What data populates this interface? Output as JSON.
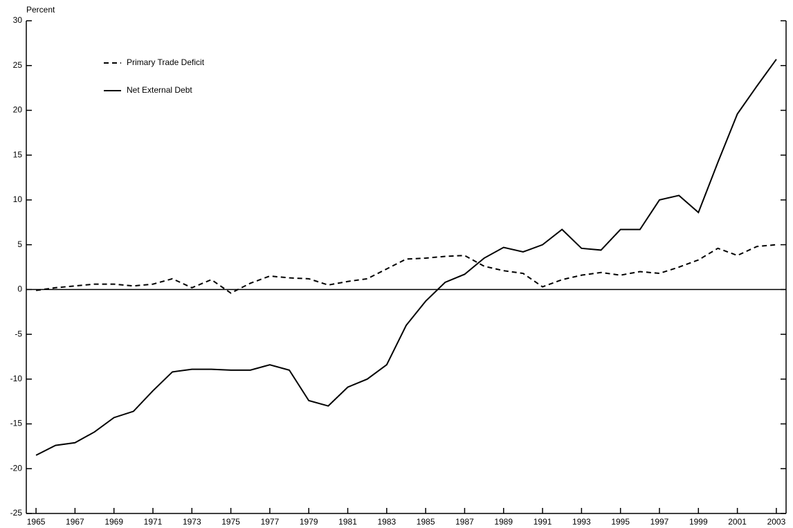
{
  "chart_data": {
    "type": "line",
    "y_label": "Percent",
    "x": [
      1965,
      1966,
      1967,
      1968,
      1969,
      1970,
      1971,
      1972,
      1973,
      1974,
      1975,
      1976,
      1977,
      1978,
      1979,
      1980,
      1981,
      1982,
      1983,
      1984,
      1985,
      1986,
      1987,
      1988,
      1989,
      1990,
      1991,
      1992,
      1993,
      1994,
      1995,
      1996,
      1997,
      1998,
      1999,
      2000,
      2001,
      2002,
      2003
    ],
    "series": [
      {
        "name": "Primary Trade Deficit",
        "color": "#000000",
        "style": "dashed",
        "values": [
          -0.1,
          0.2,
          0.4,
          0.6,
          0.6,
          0.4,
          0.6,
          1.2,
          0.2,
          1.1,
          -0.4,
          0.7,
          1.5,
          1.3,
          1.2,
          0.5,
          0.9,
          1.2,
          2.3,
          3.4,
          3.5,
          3.7,
          3.8,
          2.6,
          2.1,
          1.8,
          0.3,
          1.1,
          1.6,
          1.9,
          1.6,
          2.0,
          1.8,
          2.5,
          3.3,
          4.6,
          3.8,
          4.8,
          5.0
        ]
      },
      {
        "name": "Net External Debt",
        "color": "#000000",
        "style": "solid",
        "values": [
          -18.5,
          -17.4,
          -17.1,
          -15.9,
          -14.3,
          -13.6,
          -11.3,
          -9.2,
          -8.9,
          -8.9,
          -9.0,
          -9.0,
          -8.4,
          -9.0,
          -12.4,
          -13.0,
          -10.9,
          -10.0,
          -8.4,
          -4.0,
          -1.3,
          0.8,
          1.7,
          3.5,
          4.7,
          4.2,
          5.0,
          6.7,
          4.6,
          4.4,
          6.7,
          6.7,
          10.0,
          10.5,
          8.6,
          14.2,
          19.6,
          22.7,
          25.7
        ]
      }
    ],
    "xlim": [
      1964.5,
      2003.5
    ],
    "xticks": [
      1965,
      1967,
      1969,
      1971,
      1973,
      1975,
      1977,
      1979,
      1981,
      1983,
      1985,
      1987,
      1989,
      1991,
      1993,
      1995,
      1997,
      1999,
      2001,
      2003
    ],
    "ylim": [
      -25,
      30
    ],
    "yticks": [
      -25,
      -20,
      -15,
      -10,
      -5,
      0,
      5,
      10,
      15,
      20,
      25,
      30
    ],
    "zero_line": true,
    "legend": "upper left"
  }
}
